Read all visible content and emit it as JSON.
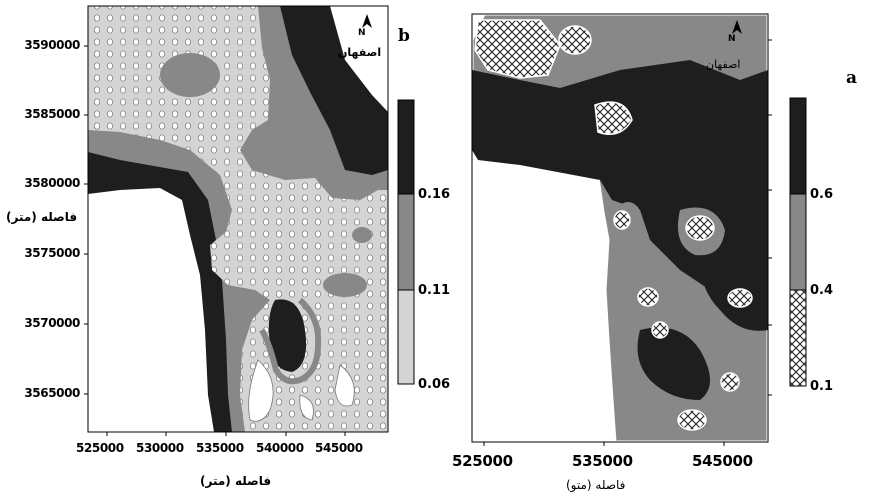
{
  "panel_b": {
    "letter": "b",
    "city": "اصفهان",
    "north": "N",
    "y_ticks": [
      "3590000",
      "3585000",
      "3580000",
      "3575000",
      "3570000",
      "3565000"
    ],
    "x_ticks": [
      "525000",
      "530000",
      "535000",
      "540000",
      "545000"
    ],
    "y_axis_title": "فاصله (متر)",
    "x_axis_title": "فاصله (متر)",
    "legend": [
      "0.16",
      "0.11",
      "0.06"
    ],
    "colors": {
      "high": "#1e1e1e",
      "mid": "#888888",
      "low": "#d4d4d4"
    }
  },
  "panel_a": {
    "letter": "a",
    "city": "اصفهان",
    "north": "N",
    "x_ticks": [
      "525000",
      "535000",
      "545000"
    ],
    "x_axis_title": "فاصله (متو)",
    "legend": [
      "0.6",
      "0.4",
      "0.1"
    ],
    "colors": {
      "high": "#1e1e1e",
      "mid": "#888888",
      "low": "crosshatch"
    }
  }
}
